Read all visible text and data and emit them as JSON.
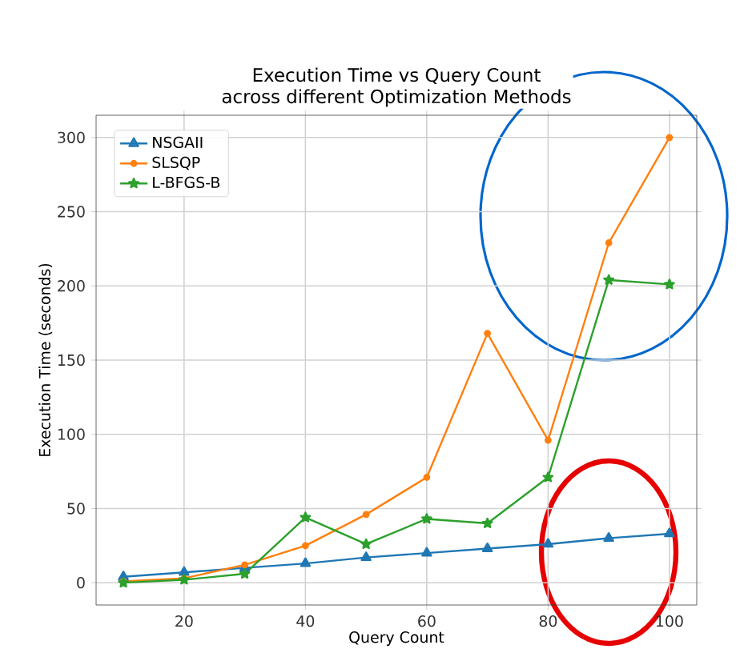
{
  "chart_data": {
    "type": "line",
    "title": "Execution Time vs Query Count\nacross different Optimization Methods",
    "xlabel": "Query Count",
    "ylabel": "Execution Time (seconds)",
    "x": [
      10,
      20,
      30,
      40,
      50,
      60,
      70,
      80,
      90,
      100
    ],
    "series": [
      {
        "name": "NSGAII",
        "color": "#1f77b4",
        "marker": "triangle",
        "values": [
          4,
          7,
          10,
          13,
          17,
          20,
          23,
          26,
          30,
          33
        ]
      },
      {
        "name": "SLSQP",
        "color": "#ff7f0e",
        "marker": "circle",
        "values": [
          1,
          3,
          12,
          25,
          46,
          71,
          168,
          96,
          229,
          300
        ]
      },
      {
        "name": "L-BFGS-B",
        "color": "#2ca02c",
        "marker": "star",
        "values": [
          0,
          2,
          6,
          44,
          26,
          43,
          40,
          71,
          204,
          201
        ]
      }
    ],
    "xlim": [
      5.5,
      104.5
    ],
    "ylim": [
      -15,
      315
    ],
    "xticks": [
      20,
      40,
      60,
      80,
      100
    ],
    "yticks": [
      0,
      50,
      100,
      150,
      200,
      250,
      300
    ],
    "grid": true,
    "legend": "top left",
    "line_style": "solid"
  }
}
